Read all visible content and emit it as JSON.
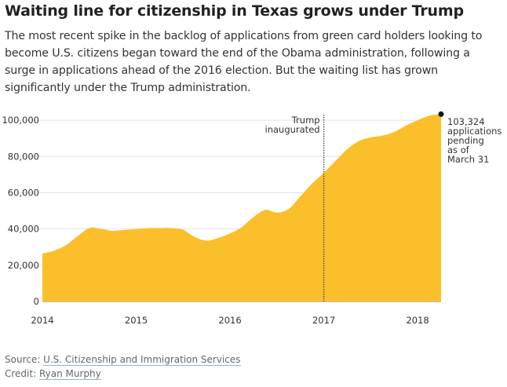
{
  "header": {
    "title": "Waiting line for citizenship in Texas grows under Trump",
    "subtitle": "The most recent spike in the backlog of applications from green card holders looking to become U.S. citizens began toward the end of the Obama administration, following a surge in applications ahead of the 2016 election. But the waiting list has grown significantly under the Trump administration."
  },
  "chart_data": {
    "type": "area",
    "title": "Waiting line for citizenship in Texas grows under Trump",
    "xlabel": "",
    "ylabel": "",
    "ylim": [
      0,
      110000
    ],
    "xlim": [
      2014.0,
      2018.25
    ],
    "grid": true,
    "y_ticks": [
      0,
      20000,
      40000,
      60000,
      80000,
      100000
    ],
    "y_tick_labels": [
      "0",
      "20,000",
      "40,000",
      "60,000",
      "80,000",
      "100,000"
    ],
    "x_ticks": [
      2014,
      2015,
      2016,
      2017,
      2018
    ],
    "x_tick_labels": [
      "2014",
      "2015",
      "2016",
      "2017",
      "2018"
    ],
    "series": [
      {
        "name": "Applications pending",
        "color": "#fbbf2b",
        "x": [
          2014.0,
          2014.125,
          2014.25,
          2014.375,
          2014.5,
          2014.625,
          2014.75,
          2014.875,
          2015.0,
          2015.125,
          2015.25,
          2015.375,
          2015.5,
          2015.625,
          2015.75,
          2015.875,
          2016.0,
          2016.125,
          2016.25,
          2016.375,
          2016.5,
          2016.625,
          2016.75,
          2016.875,
          2017.0,
          2017.125,
          2017.25,
          2017.375,
          2017.5,
          2017.625,
          2017.75,
          2017.875,
          2018.0,
          2018.125,
          2018.25
        ],
        "values": [
          26500,
          28000,
          31000,
          36000,
          40500,
          40000,
          39000,
          39500,
          40000,
          40500,
          40500,
          40500,
          39500,
          35500,
          33500,
          35000,
          37500,
          41000,
          46500,
          50500,
          49000,
          51000,
          58000,
          65000,
          71000,
          77500,
          84000,
          88500,
          90500,
          91500,
          93500,
          97000,
          100000,
          102500,
          103324
        ]
      }
    ],
    "annotations": [
      {
        "type": "vline",
        "x": 2017.0,
        "label_lines": [
          "Trump",
          "inaugurated"
        ]
      },
      {
        "type": "point",
        "x": 2018.25,
        "y": 103324,
        "label_lines": [
          "103,324",
          "applications",
          "pending",
          "as of",
          "March 31"
        ]
      }
    ]
  },
  "footer": {
    "source_prefix": "Source: ",
    "source_name": "U.S. Citizenship and Immigration Services",
    "credit_prefix": "Credit: ",
    "credit_name": "Ryan Murphy"
  }
}
